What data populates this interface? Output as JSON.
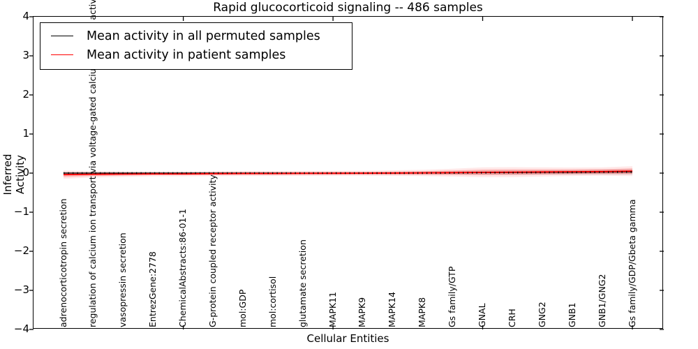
{
  "title": "Rapid glucocorticoid signaling -- 486 samples",
  "axes": {
    "x_label": "Cellular Entities",
    "y_label": "Inferred Activity",
    "y_tick_labels": [
      "4",
      "3",
      "2",
      "1",
      "0",
      "−1",
      "−2",
      "−3",
      "−4"
    ]
  },
  "legend": {
    "items": [
      {
        "label": "Mean activity in all permuted samples",
        "color": "#000000"
      },
      {
        "label": "Mean activity in patient samples",
        "color": "#ff0000"
      }
    ]
  },
  "colors": {
    "axis": "#000000",
    "patient_line": "#ff0000",
    "permuted_line": "#000000",
    "patient_band": "rgba(255,0,0,0.22)",
    "patient_band_outer": "rgba(255,0,0,0.09)",
    "permuted_band": "rgba(0,0,0,0.12)"
  },
  "chart_data": {
    "type": "line",
    "title": "Rapid glucocorticoid signaling -- 486 samples",
    "xlabel": "Cellular Entities",
    "ylabel": "Inferred Activity",
    "ylim": [
      -4,
      4
    ],
    "yticks": [
      -4,
      -3,
      -2,
      -1,
      0,
      1,
      2,
      3,
      4
    ],
    "x_tick_positions": [
      5,
      10,
      15,
      20
    ],
    "grid": false,
    "legend_position": "upper left",
    "categories": [
      "adrenocorticotropin secretion",
      "regulation of calcium ion transport via voltage-gated calcium channel activity",
      "vasopressin secretion",
      "EntrezGene:2778",
      "ChemicalAbstracts:86-01-1",
      "G-protein coupled receptor activity",
      "mol:GDP",
      "mol:cortisol",
      "glutamate secretion",
      "MAPK11",
      "MAPK9",
      "MAPK14",
      "MAPK8",
      "Gs family/GTP",
      "GNAL",
      "CRH",
      "GNG2",
      "GNB1",
      "GNB1/GNG2",
      "Gs family/GDP/Gbeta gamma"
    ],
    "series": [
      {
        "name": "Mean activity in all permuted samples",
        "color": "#000000",
        "line_style": "solid, overlaid as dotted ticks on plot",
        "values": [
          0.0,
          0.0,
          0.0,
          0.0,
          0.0,
          0.0,
          0.0,
          0.0,
          0.0,
          0.0,
          0.0,
          0.0,
          0.002,
          0.005,
          0.01,
          0.013,
          0.017,
          0.02,
          0.025,
          0.03
        ],
        "band_halfwidth": [
          0.03,
          0.025,
          0.025,
          0.025,
          0.025,
          0.025,
          0.025,
          0.025,
          0.025,
          0.025,
          0.025,
          0.03,
          0.035,
          0.04,
          0.05,
          0.055,
          0.055,
          0.055,
          0.06,
          0.065
        ]
      },
      {
        "name": "Mean activity in patient samples",
        "color": "#ff0000",
        "line_style": "solid",
        "values": [
          -0.04,
          -0.03,
          -0.025,
          -0.02,
          -0.02,
          -0.015,
          -0.01,
          -0.01,
          -0.008,
          -0.005,
          -0.003,
          0.0,
          0.005,
          0.012,
          0.02,
          0.025,
          0.03,
          0.035,
          0.04,
          0.05
        ],
        "band_halfwidth": [
          0.06,
          0.045,
          0.04,
          0.035,
          0.035,
          0.035,
          0.035,
          0.035,
          0.035,
          0.035,
          0.035,
          0.04,
          0.045,
          0.055,
          0.07,
          0.07,
          0.065,
          0.06,
          0.06,
          0.07
        ]
      }
    ]
  }
}
